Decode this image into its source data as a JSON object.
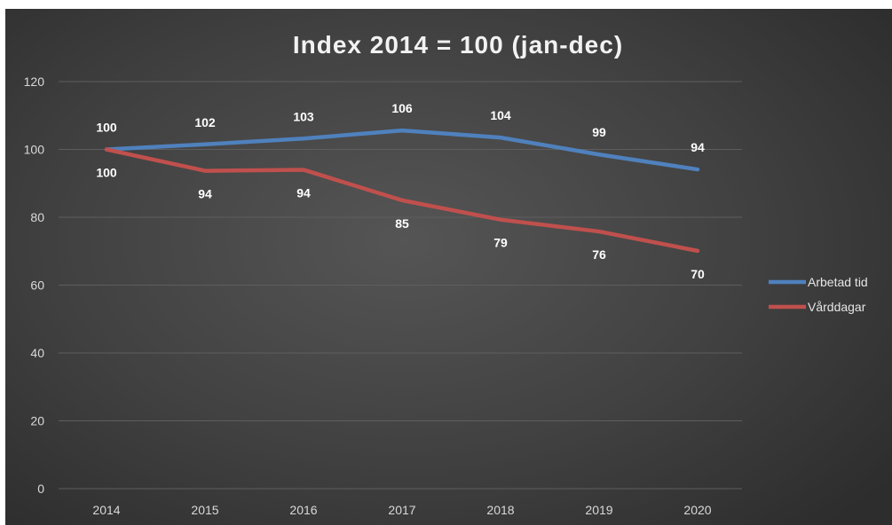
{
  "chart_data": {
    "type": "line",
    "title": "Index 2014 = 100 (jan-dec)",
    "xlabel": "",
    "ylabel": "",
    "categories": [
      "2014",
      "2015",
      "2016",
      "2017",
      "2018",
      "2019",
      "2020"
    ],
    "ylim": [
      0,
      120
    ],
    "yticks": [
      0,
      20,
      40,
      60,
      80,
      100,
      120
    ],
    "grid": true,
    "legend_position": "right",
    "series": [
      {
        "name": "Arbetad tid",
        "color": "#4f81bd",
        "values": [
          100,
          101.5,
          103.2,
          105.6,
          103.5,
          98.5,
          94.1
        ],
        "labels": [
          "100",
          "102",
          "103",
          "106",
          "104",
          "99",
          "94"
        ],
        "label_position": "above"
      },
      {
        "name": "Vårddagar",
        "color": "#c0504d",
        "values": [
          100,
          93.7,
          94.0,
          85.0,
          79.3,
          75.8,
          70.1
        ],
        "labels": [
          "100",
          "94",
          "94",
          "85",
          "79",
          "76",
          "70"
        ],
        "label_position": "below"
      }
    ]
  }
}
